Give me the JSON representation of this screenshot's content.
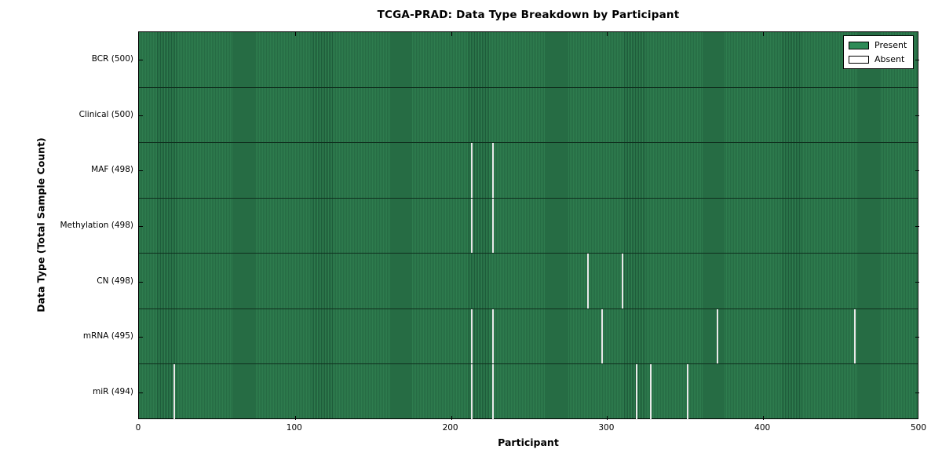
{
  "chart_data": {
    "type": "heatmap",
    "title": "TCGA-PRAD: Data Type Breakdown by Participant",
    "xlabel": "Participant",
    "ylabel": "Data Type (Total Sample Count)",
    "x_range": [
      0,
      500
    ],
    "x_ticks": [
      "0",
      "100",
      "200",
      "300",
      "400",
      "500"
    ],
    "grid": false,
    "legend_position": "upper right",
    "legend": [
      {
        "label": "Present",
        "color": "#2e8b57"
      },
      {
        "label": "Absent",
        "color": "#ffffff"
      }
    ],
    "colors": {
      "present_stripe_light": "#2e7c4e",
      "present_stripe_dark": "#1e5c3a",
      "absent_gap": "#e9e9e9",
      "row_divider": "#0f2f1e",
      "frame": "#000000"
    },
    "rows": [
      {
        "name": "BCR",
        "label": "BCR (500)",
        "total": 500,
        "absent_participants": []
      },
      {
        "name": "Clinical",
        "label": "Clinical (500)",
        "total": 500,
        "absent_participants": []
      },
      {
        "name": "MAF",
        "label": "MAF (498)",
        "total": 498,
        "absent_participants": [
          213,
          227
        ]
      },
      {
        "name": "Methylation",
        "label": "Methylation (498)",
        "total": 498,
        "absent_participants": [
          213,
          227
        ]
      },
      {
        "name": "CN",
        "label": "CN (498)",
        "total": 498,
        "absent_participants": [
          288,
          310
        ]
      },
      {
        "name": "mRNA",
        "label": "mRNA (495)",
        "total": 495,
        "absent_participants": [
          213,
          227,
          297,
          371,
          459
        ]
      },
      {
        "name": "miR",
        "label": "miR (494)",
        "total": 494,
        "absent_participants": [
          22,
          213,
          227,
          319,
          328,
          352
        ]
      }
    ]
  }
}
